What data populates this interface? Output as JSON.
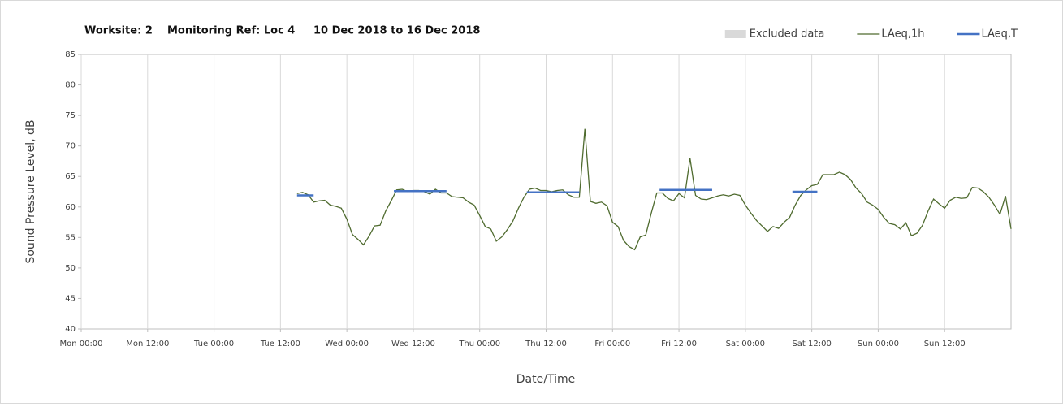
{
  "chart_data": {
    "type": "line",
    "title": "Worksite: 2    Monitoring Ref: Loc 4     10 Dec 2018 to 16 Dec 2018",
    "xlabel": "Date/Time",
    "ylabel": "Sound Pressure Level, dB",
    "xlim": [
      0,
      168
    ],
    "xticks": [
      {
        "value": 0,
        "label": "Mon 00:00"
      },
      {
        "value": 12,
        "label": "Mon 12:00"
      },
      {
        "value": 24,
        "label": "Tue 00:00"
      },
      {
        "value": 36,
        "label": "Tue 12:00"
      },
      {
        "value": 48,
        "label": "Wed 00:00"
      },
      {
        "value": 60,
        "label": "Wed 12:00"
      },
      {
        "value": 72,
        "label": "Thu 00:00"
      },
      {
        "value": 84,
        "label": "Thu 12:00"
      },
      {
        "value": 96,
        "label": "Fri 00:00"
      },
      {
        "value": 108,
        "label": "Fri 12:00"
      },
      {
        "value": 120,
        "label": "Sat 00:00"
      },
      {
        "value": 132,
        "label": "Sat 12:00"
      },
      {
        "value": 144,
        "label": "Sun 00:00"
      },
      {
        "value": 156,
        "label": "Sun 12:00"
      }
    ],
    "ylim": [
      40,
      85
    ],
    "yticks": [
      40,
      45,
      50,
      55,
      60,
      65,
      70,
      75,
      80,
      85
    ],
    "grid": "x",
    "legend": "top-right",
    "series": [
      {
        "name": "Excluded data",
        "color": "#d9d9d9",
        "kind": "area",
        "x": [],
        "values": []
      },
      {
        "name": "LAeq,1h",
        "color": "#4f6b2f",
        "kind": "line",
        "x": [
          39,
          40,
          41,
          42,
          43,
          44,
          45,
          46,
          47,
          48,
          49,
          50,
          51,
          52,
          53,
          54,
          55,
          56,
          57,
          58,
          59,
          60,
          61,
          62,
          63,
          64,
          65,
          66,
          67,
          68,
          69,
          70,
          71,
          72,
          73,
          74,
          75,
          76,
          77,
          78,
          79,
          80,
          81,
          82,
          83,
          84,
          85,
          86,
          87,
          88,
          89,
          90,
          91,
          92,
          93,
          94,
          95,
          96,
          97,
          98,
          99,
          100,
          101,
          102,
          103,
          104,
          105,
          106,
          107,
          108,
          109,
          110,
          111,
          112,
          113,
          114,
          115,
          116,
          117,
          118,
          119,
          120,
          121,
          122,
          123,
          124,
          125,
          126,
          127,
          128,
          129,
          130,
          131,
          132,
          133,
          134,
          135,
          136,
          137,
          138,
          139,
          140,
          141,
          142,
          143,
          144,
          145,
          146,
          147,
          148,
          149,
          150,
          151,
          152,
          153,
          154,
          155,
          156,
          157,
          158,
          159,
          160,
          161,
          162,
          163,
          164,
          165,
          166,
          167,
          168
        ],
        "values": [
          62.2,
          62.4,
          62,
          60.8,
          61,
          61.1,
          60.3,
          60.1,
          59.8,
          58,
          55.5,
          54.7,
          53.8,
          55.2,
          56.9,
          57,
          59.3,
          61,
          62.8,
          62.9,
          62.5,
          62.7,
          62.7,
          62.5,
          62.1,
          62.9,
          62.3,
          62.3,
          61.7,
          61.6,
          61.5,
          60.8,
          60.3,
          58.6,
          56.8,
          56.4,
          54.4,
          55.1,
          56.3,
          57.7,
          59.8,
          61.6,
          62.9,
          63.1,
          62.7,
          62.7,
          62.5,
          62.7,
          62.8,
          62,
          61.6,
          61.6,
          72.8,
          60.9,
          60.6,
          60.8,
          60.2,
          57.5,
          56.8,
          54.5,
          53.5,
          53,
          55.1,
          55.4,
          59,
          62.3,
          62.3,
          61.4,
          61,
          62.2,
          61.5,
          68,
          61.9,
          61.3,
          61.2,
          61.5,
          61.8,
          62,
          61.8,
          62.1,
          61.9,
          60.3,
          59,
          57.8,
          56.9,
          56,
          56.8,
          56.5,
          57.5,
          58.3,
          60.3,
          61.9,
          62.8,
          63.5,
          63.7,
          65.3,
          65.3,
          65.3,
          65.7,
          65.3,
          64.5,
          63.1,
          62.2,
          60.8,
          60.3,
          59.6,
          58.3,
          57.3,
          57.1,
          56.4,
          57.4,
          55.3,
          55.7,
          57,
          59.3,
          61.3,
          60.5,
          59.8,
          61.1,
          61.6,
          61.4,
          61.5,
          63.2,
          63.1,
          62.5,
          61.6,
          60.3,
          58.8,
          61.8,
          56.4
        ]
      },
      {
        "name": "LAeq,T",
        "color": "#4472c4",
        "kind": "line",
        "x": [
          39,
          42,
          null,
          56.5,
          66,
          null,
          80.5,
          90,
          null,
          104.5,
          114,
          null,
          128.5,
          133
        ],
        "values": [
          61.9,
          61.9,
          null,
          62.6,
          62.6,
          null,
          62.4,
          62.4,
          null,
          62.8,
          62.8,
          null,
          62.5,
          62.5
        ]
      }
    ]
  }
}
